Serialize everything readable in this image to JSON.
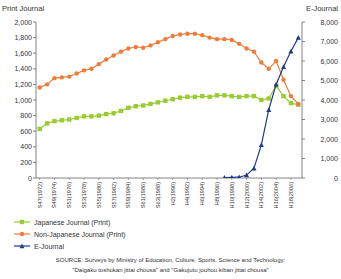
{
  "chart_data": {
    "type": "line",
    "y_label": "Print Journal",
    "y2_label": "E-Journal",
    "annotations": [
      "SOURCE: Surveys by Ministry of Education, Culture, Sports, Science and Technology:",
      "\"Daigaku toshokan jittai chousa\" and \"Gakujutu jouhou kiban jittai chousa\""
    ],
    "categories": [
      "S47(1972)",
      null,
      "S49(1974)",
      null,
      "S51(1976)",
      null,
      "S53(1978)",
      null,
      "S55(1980)",
      null,
      "S57(1982)",
      null,
      "S59(1984)",
      null,
      "S61(1986)",
      null,
      "S63(1988)",
      null,
      "H2(1990)",
      null,
      "H4(1992)",
      null,
      "H6(1994)",
      null,
      "H8(1996)",
      null,
      "H10(1998)",
      null,
      "H12(2000)",
      null,
      "H14(2002)",
      null,
      "H16(2004)",
      null,
      "H18(2006)",
      null
    ],
    "series": [
      {
        "name": "Japanese Journal (Print)",
        "color": "#99cc33",
        "marker": "square",
        "line_style": "solid",
        "values": [
          630,
          700,
          730,
          740,
          750,
          770,
          790,
          790,
          800,
          820,
          830,
          860,
          900,
          920,
          930,
          950,
          970,
          990,
          1010,
          1030,
          1040,
          1040,
          1050,
          1040,
          1060,
          1060,
          1050,
          1040,
          1050,
          1050,
          1000,
          1020,
          1180,
          1050,
          960,
          940
        ]
      },
      {
        "name": "Non-Japanese Journal (Print)",
        "color": "#ee7d3c",
        "marker": "circle",
        "line_style": "solid",
        "values": [
          1160,
          1200,
          1280,
          1290,
          1300,
          1340,
          1380,
          1400,
          1460,
          1520,
          1570,
          1620,
          1660,
          1680,
          1670,
          1700,
          1740,
          1780,
          1820,
          1840,
          1850,
          1850,
          1830,
          1800,
          1780,
          1780,
          1770,
          1720,
          1660,
          1620,
          1480,
          1400,
          1500,
          1260,
          1050,
          950
        ]
      },
      {
        "name": "E-Journal",
        "color": "#1f3c88",
        "marker": "triangle",
        "line_style": "solid",
        "axis": "y2",
        "values": [
          null,
          null,
          null,
          null,
          null,
          null,
          null,
          null,
          null,
          null,
          null,
          null,
          null,
          null,
          null,
          null,
          null,
          null,
          null,
          null,
          null,
          null,
          null,
          null,
          null,
          20,
          30,
          40,
          150,
          500,
          1700,
          3500,
          4800,
          5700,
          6500,
          7200
        ]
      }
    ],
    "ylim": [
      0,
      2000
    ],
    "yticks": [
      0,
      200,
      400,
      600,
      800,
      {
        "value": 1000,
        "label": "1,000"
      },
      {
        "value": 1200,
        "label": "1,200"
      },
      {
        "value": 1400,
        "label": "1,400"
      },
      {
        "value": 1600,
        "label": "1,600"
      },
      {
        "value": 1800,
        "label": "1,800"
      },
      {
        "value": 2000,
        "label": "2,000"
      }
    ],
    "y2lim": [
      0,
      8000
    ],
    "y2ticks": [
      0,
      {
        "value": 1000,
        "label": "1,000"
      },
      {
        "value": 2000,
        "label": "2,000"
      },
      {
        "value": 3000,
        "label": "3,000"
      },
      {
        "value": 4000,
        "label": "4,000"
      },
      {
        "value": 5000,
        "label": "5,000"
      },
      {
        "value": 6000,
        "label": "6,000"
      },
      {
        "value": 7000,
        "label": "7,000"
      },
      {
        "value": 8000,
        "label": "8,000"
      }
    ],
    "grid": false,
    "legend": "bottom-left"
  }
}
